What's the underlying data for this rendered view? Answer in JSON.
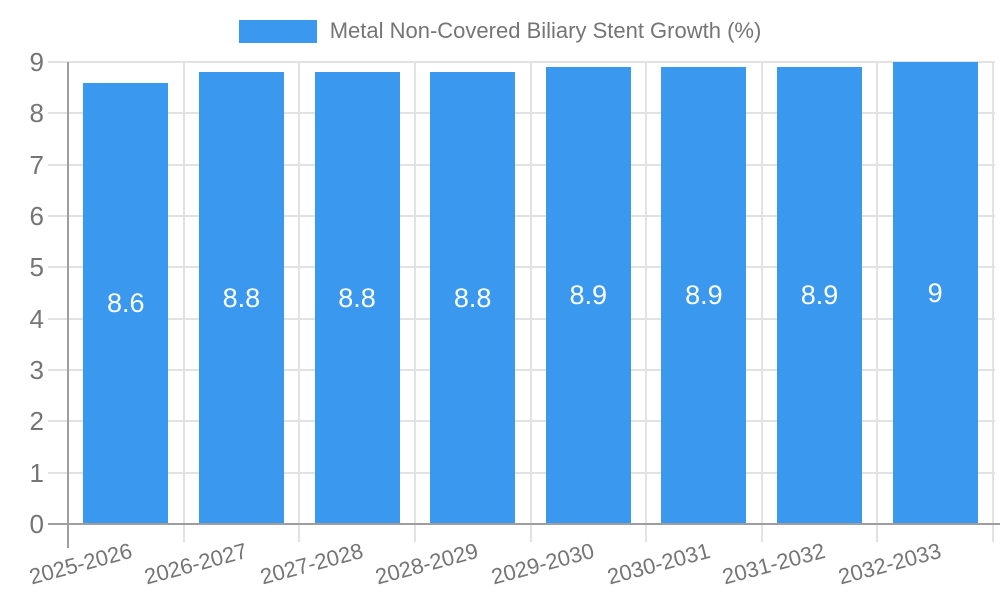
{
  "chart_data": {
    "type": "bar",
    "title": "Metal Non-Covered Biliary Stent Growth (%)",
    "categories": [
      "2025-2026",
      "2026-2027",
      "2027-2028",
      "2028-2029",
      "2029-2030",
      "2030-2031",
      "2031-2032",
      "2032-2033"
    ],
    "values": [
      8.6,
      8.8,
      8.8,
      8.8,
      8.9,
      8.9,
      8.9,
      9
    ],
    "bar_labels": [
      "8.6",
      "8.8",
      "8.8",
      "8.8",
      "8.9",
      "8.9",
      "8.9",
      "9"
    ],
    "xlabel": "",
    "ylabel": "",
    "ylim": [
      0,
      9
    ],
    "yticks": [
      0,
      1,
      2,
      3,
      4,
      5,
      6,
      7,
      8,
      9
    ],
    "grid": true,
    "legend_position": "top",
    "colors": {
      "bar": "#3A99EF",
      "axis_line": "#9e9e9e",
      "gridline": "#e2e2e2",
      "axis_text": "#757575",
      "bar_label_text": "#ffffff",
      "background": "#ffffff"
    }
  }
}
